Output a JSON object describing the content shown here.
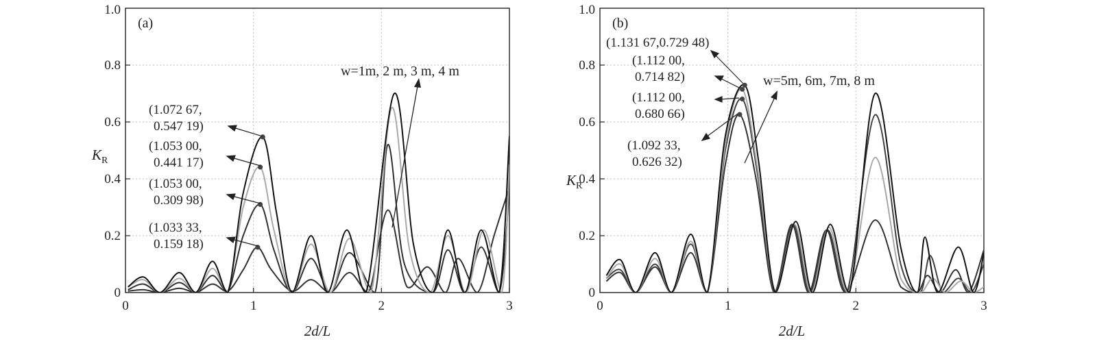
{
  "figure": {
    "panels": [
      {
        "id": "a",
        "tag": "(a)",
        "xlabel": "2d/L",
        "ylabel": "K",
        "ylabel_sub": "R",
        "w_label": "w=1m, 2 m, 3 m, 4 m",
        "annotations": [
          {
            "line1": "(1.072 67,",
            "line2": "0.547 19)"
          },
          {
            "line1": "(1.053 00,",
            "line2": "0.441 17)"
          },
          {
            "line1": "(1.053 00,",
            "line2": "0.309 98)"
          },
          {
            "line1": "(1.033 33,",
            "line2": "0.159 18)"
          }
        ]
      },
      {
        "id": "b",
        "tag": "(b)",
        "xlabel": "2d/L",
        "ylabel": "K",
        "ylabel_sub": "R",
        "w_label": "w=5m, 6m, 7m, 8 m",
        "annotations": [
          {
            "line1": "(1.131 67,0.729 48)"
          },
          {
            "line1": "(1.112 00,",
            "line2": "0.714 82)"
          },
          {
            "line1": "(1.112 00,",
            "line2": "0.680 66)"
          },
          {
            "line1": "(1.092 33,",
            "line2": "0.626 32)"
          }
        ]
      }
    ]
  },
  "chart_data": [
    {
      "type": "line",
      "panel": "(a)",
      "xlabel": "2d/L",
      "ylabel": "K_R",
      "xlim": [
        0,
        3
      ],
      "ylim": [
        0,
        1.0
      ],
      "xticks": [
        0,
        1,
        2,
        3
      ],
      "yticks": [
        0,
        0.2,
        0.4,
        0.6,
        0.8,
        1.0
      ],
      "grid": true,
      "series": [
        {
          "w": 1,
          "color": "#303030",
          "x": [
            0.02,
            0.14,
            0.27,
            0.42,
            0.55,
            0.68,
            0.8,
            0.92,
            1.03,
            1.14,
            1.3,
            1.45,
            1.6,
            1.75,
            1.9,
            2.05,
            2.2,
            2.36,
            2.5,
            2.6,
            2.75,
            2.88,
            3.0
          ],
          "y": [
            0.005,
            0.01,
            0.0,
            0.015,
            0.0,
            0.03,
            0.005,
            0.08,
            0.159,
            0.08,
            0.005,
            0.045,
            0.0,
            0.07,
            0.0,
            0.29,
            0.02,
            0.09,
            0.0,
            0.12,
            0.0,
            0.2,
            0.37
          ]
        },
        {
          "w": 2,
          "color": "#303030",
          "x": [
            0.02,
            0.14,
            0.27,
            0.42,
            0.55,
            0.68,
            0.8,
            0.92,
            1.053,
            1.16,
            1.3,
            1.45,
            1.6,
            1.75,
            1.95,
            2.05,
            2.18,
            2.4,
            2.52,
            2.65,
            2.78,
            2.92,
            3.0
          ],
          "y": [
            0.01,
            0.03,
            0.0,
            0.035,
            0.0,
            0.06,
            0.005,
            0.2,
            0.31,
            0.15,
            0.0,
            0.12,
            0.0,
            0.14,
            0.0,
            0.52,
            0.1,
            0.0,
            0.15,
            0.0,
            0.16,
            0.0,
            0.36
          ]
        },
        {
          "w": 3,
          "color": "#a8a8a8",
          "x": [
            0.02,
            0.14,
            0.27,
            0.42,
            0.55,
            0.68,
            0.8,
            0.92,
            1.053,
            1.16,
            1.3,
            1.45,
            1.6,
            1.75,
            1.92,
            2.08,
            2.22,
            2.38,
            2.52,
            2.66,
            2.8,
            2.94,
            3.0
          ],
          "y": [
            0.02,
            0.045,
            0.0,
            0.05,
            0.0,
            0.085,
            0.005,
            0.3,
            0.441,
            0.22,
            0.0,
            0.17,
            0.0,
            0.19,
            0.0,
            0.65,
            0.15,
            0.0,
            0.2,
            0.0,
            0.22,
            0.0,
            0.45
          ]
        },
        {
          "w": 4,
          "color": "#111111",
          "x": [
            0.02,
            0.14,
            0.27,
            0.42,
            0.55,
            0.68,
            0.8,
            0.92,
            1.073,
            1.18,
            1.3,
            1.45,
            1.58,
            1.73,
            1.88,
            2.1,
            2.25,
            2.4,
            2.52,
            2.65,
            2.78,
            2.92,
            3.0
          ],
          "y": [
            0.02,
            0.055,
            0.0,
            0.07,
            0.0,
            0.11,
            0.0,
            0.35,
            0.547,
            0.28,
            0.0,
            0.2,
            0.0,
            0.22,
            0.0,
            0.7,
            0.17,
            0.0,
            0.22,
            0.0,
            0.22,
            0.0,
            0.55
          ]
        }
      ],
      "points": [
        {
          "x": 1.07267,
          "y": 0.54719
        },
        {
          "x": 1.053,
          "y": 0.44117
        },
        {
          "x": 1.053,
          "y": 0.30998
        },
        {
          "x": 1.03333,
          "y": 0.15918
        }
      ]
    },
    {
      "type": "line",
      "panel": "(b)",
      "xlabel": "2d/L",
      "ylabel": "K_R",
      "xlim": [
        0,
        3
      ],
      "ylim": [
        0,
        1.0
      ],
      "xticks": [
        0,
        1,
        2,
        3
      ],
      "yticks": [
        0,
        0.2,
        0.4,
        0.6,
        0.8,
        1.0
      ],
      "grid": true,
      "series": [
        {
          "w": 5,
          "color": "#303030",
          "x": [
            0.05,
            0.16,
            0.28,
            0.43,
            0.56,
            0.71,
            0.84,
            0.98,
            1.092,
            1.22,
            1.36,
            1.5,
            1.63,
            1.77,
            1.92,
            2.15,
            2.35,
            2.48,
            2.56,
            2.66,
            2.78,
            2.88,
            3.0
          ],
          "y": [
            0.04,
            0.07,
            0.0,
            0.09,
            0.0,
            0.14,
            0.0,
            0.45,
            0.626,
            0.4,
            0.0,
            0.24,
            0.0,
            0.22,
            0.0,
            0.255,
            0.02,
            0.0,
            0.06,
            0.0,
            0.08,
            0.0,
            0.15
          ]
        },
        {
          "w": 6,
          "color": "#404040",
          "x": [
            0.05,
            0.16,
            0.28,
            0.43,
            0.56,
            0.71,
            0.84,
            0.98,
            1.112,
            1.23,
            1.36,
            1.51,
            1.64,
            1.78,
            1.93,
            2.15,
            2.35,
            2.5,
            2.58,
            2.68,
            2.8,
            2.9,
            3.0
          ],
          "y": [
            0.05,
            0.08,
            0.0,
            0.1,
            0.0,
            0.17,
            0.0,
            0.5,
            0.681,
            0.42,
            0.0,
            0.24,
            0.0,
            0.22,
            0.0,
            0.625,
            0.1,
            0.0,
            0.13,
            0.0,
            0.05,
            0.0,
            0.1
          ]
        },
        {
          "w": 7,
          "color": "#a8a8a8",
          "x": [
            0.05,
            0.16,
            0.28,
            0.43,
            0.56,
            0.71,
            0.84,
            0.98,
            1.112,
            1.23,
            1.37,
            1.52,
            1.65,
            1.79,
            1.94,
            2.15,
            2.35,
            2.5,
            2.6,
            2.7,
            2.82,
            2.92,
            3.0
          ],
          "y": [
            0.05,
            0.1,
            0.0,
            0.12,
            0.0,
            0.18,
            0.0,
            0.52,
            0.715,
            0.44,
            0.0,
            0.24,
            0.0,
            0.23,
            0.0,
            0.475,
            0.05,
            0.0,
            0.05,
            0.0,
            0.04,
            0.0,
            0.02
          ]
        },
        {
          "w": 8,
          "color": "#111111",
          "x": [
            0.05,
            0.16,
            0.28,
            0.43,
            0.56,
            0.71,
            0.84,
            0.98,
            1.132,
            1.24,
            1.37,
            1.53,
            1.66,
            1.8,
            1.95,
            2.15,
            2.35,
            2.48,
            2.54,
            2.64,
            2.8,
            2.92,
            3.0
          ],
          "y": [
            0.06,
            0.115,
            0.0,
            0.14,
            0.0,
            0.205,
            0.0,
            0.55,
            0.729,
            0.46,
            0.0,
            0.25,
            0.0,
            0.24,
            0.0,
            0.7,
            0.16,
            0.0,
            0.195,
            0.0,
            0.16,
            0.0,
            0.14
          ]
        }
      ],
      "points": [
        {
          "x": 1.13167,
          "y": 0.72948
        },
        {
          "x": 1.112,
          "y": 0.71482
        },
        {
          "x": 1.112,
          "y": 0.68066
        },
        {
          "x": 1.09233,
          "y": 0.62632
        }
      ]
    }
  ]
}
